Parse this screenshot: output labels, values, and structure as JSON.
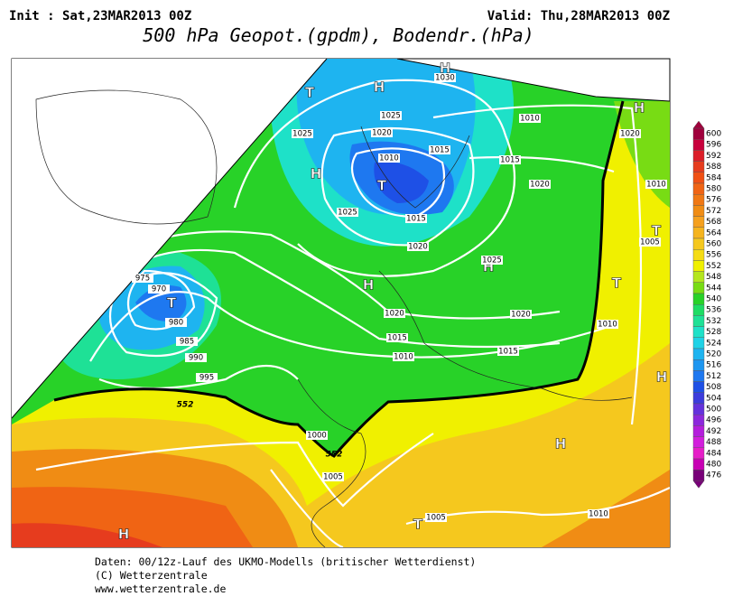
{
  "header": {
    "init": "Init : Sat,23MAR2013 00Z",
    "valid": "Valid: Thu,28MAR2013 00Z",
    "title": "500 hPa Geopot.(gpdm), Bodendr.(hPa)"
  },
  "legend": {
    "levels": [
      600,
      596,
      592,
      588,
      584,
      580,
      576,
      572,
      568,
      564,
      560,
      556,
      552,
      548,
      544,
      540,
      536,
      532,
      528,
      524,
      520,
      516,
      512,
      508,
      504,
      500,
      496,
      492,
      488,
      484,
      480,
      476
    ],
    "colors": [
      "#a0003c",
      "#c8003c",
      "#dc1e28",
      "#e63c1e",
      "#f05014",
      "#f06414",
      "#f07814",
      "#f08c14",
      "#f5a01e",
      "#f5b41e",
      "#f5c81e",
      "#f5dc14",
      "#f0f000",
      "#b4e61e",
      "#78dc14",
      "#28d228",
      "#1edc64",
      "#1ee196",
      "#1ee1c8",
      "#1ed2e6",
      "#1eb4f0",
      "#1e96f0",
      "#1e78f0",
      "#1e50e6",
      "#3c3cdc",
      "#6432dc",
      "#8c28dc",
      "#b41edc",
      "#d21edc",
      "#e61ec8",
      "#c800b4",
      "#780078"
    ]
  },
  "map_labels": {
    "pressure_centers": [
      "H",
      "H",
      "T",
      "H",
      "T",
      "H",
      "T",
      "H",
      "H",
      "T",
      "T",
      "H",
      "H",
      "H",
      "T"
    ],
    "isobars": [
      "1030",
      "1025",
      "1025",
      "1020",
      "1010",
      "1020",
      "1015",
      "1010",
      "1015",
      "1020",
      "1010",
      "1025",
      "1015",
      "1005",
      "1020",
      "1025",
      "975",
      "970",
      "1020",
      "1020",
      "1015",
      "1010",
      "980",
      "985",
      "990",
      "1010",
      "1015",
      "995",
      "1000",
      "1005",
      "1010",
      "1005"
    ],
    "geopotential": [
      "552",
      "552"
    ]
  },
  "footer": {
    "lines": [
      "Daten: 00/12z-Lauf des UKMO-Modells (britischer Wetterdienst)",
      "(C) Wetterzentrale",
      "www.wetterzentrale.de"
    ]
  }
}
